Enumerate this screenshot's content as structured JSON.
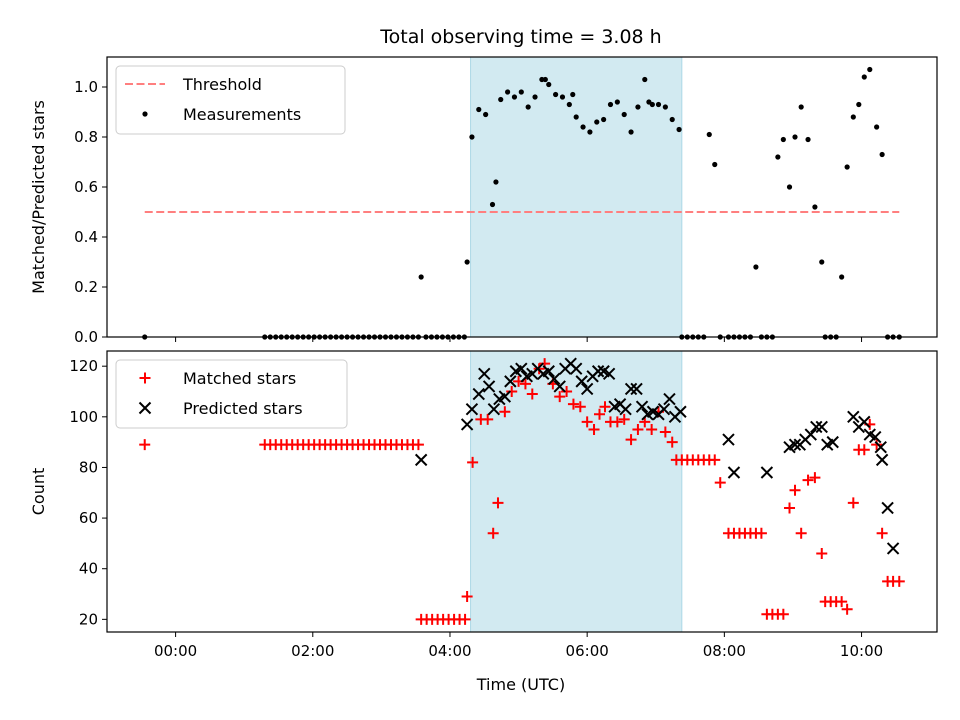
{
  "chart_data": {
    "title": "Total observing time = 3.08 h",
    "xlabel": "Time (UTC)",
    "x_unit": "hours UTC (negative = previous day)",
    "x_range": [
      -1.0,
      11.1
    ],
    "x_ticks": [
      0,
      2,
      4,
      6,
      8,
      10
    ],
    "x_tick_labels": [
      "00:00",
      "02:00",
      "04:00",
      "06:00",
      "08:00",
      "10:00"
    ],
    "shaded_interval": [
      4.3,
      7.38
    ],
    "shade_color": "#add8e6",
    "panels": [
      {
        "type": "scatter",
        "ylabel": "Matched/Predicted stars",
        "ylim": [
          0,
          1.12
        ],
        "y_ticks": [
          0,
          0.2,
          0.4,
          0.6,
          0.8,
          1.0
        ],
        "y_tick_labels": [
          "0.0",
          "0.2",
          "0.4",
          "0.6",
          "0.8",
          "1.0"
        ],
        "legend_position": "top-left",
        "threshold": {
          "name": "Threshold",
          "value": 0.5,
          "x_range": [
            -0.45,
            10.55
          ],
          "color": "#ff7f7f",
          "style": "dashed"
        },
        "series": [
          {
            "name": "Measurements",
            "marker": "dot",
            "color": "#000000",
            "x": [
              -0.45,
              1.3,
              1.38,
              1.46,
              1.54,
              1.62,
              1.7,
              1.78,
              1.86,
              1.94,
              2.02,
              2.1,
              2.18,
              2.26,
              2.34,
              2.42,
              2.5,
              2.58,
              2.66,
              2.74,
              2.82,
              2.9,
              2.98,
              3.06,
              3.14,
              3.22,
              3.3,
              3.38,
              3.46,
              3.54,
              3.58,
              3.65,
              3.73,
              3.81,
              3.89,
              3.97,
              4.05,
              4.13,
              4.21,
              4.25,
              4.32,
              4.42,
              4.52,
              4.62,
              4.67,
              4.74,
              4.84,
              4.94,
              5.04,
              5.14,
              5.24,
              5.34,
              5.39,
              5.44,
              5.54,
              5.64,
              5.74,
              5.79,
              5.84,
              5.94,
              6.04,
              6.14,
              6.24,
              6.34,
              6.44,
              6.54,
              6.64,
              6.74,
              6.84,
              6.9,
              6.95,
              7.04,
              7.14,
              7.24,
              7.34,
              7.38,
              7.46,
              7.54,
              7.62,
              7.7,
              7.78,
              7.86,
              7.94,
              8.06,
              8.14,
              8.22,
              8.3,
              8.38,
              8.46,
              8.54,
              8.62,
              8.7,
              8.78,
              8.86,
              8.95,
              9.03,
              9.12,
              9.22,
              9.32,
              9.42,
              9.47,
              9.55,
              9.63,
              9.71,
              9.79,
              9.88,
              9.96,
              10.04,
              10.12,
              10.22,
              10.3,
              10.38,
              10.46,
              10.55
            ],
            "y": [
              0.0,
              0.0,
              0.0,
              0.0,
              0.0,
              0.0,
              0.0,
              0.0,
              0.0,
              0.0,
              0.0,
              0.0,
              0.0,
              0.0,
              0.0,
              0.0,
              0.0,
              0.0,
              0.0,
              0.0,
              0.0,
              0.0,
              0.0,
              0.0,
              0.0,
              0.0,
              0.0,
              0.0,
              0.0,
              0.0,
              0.24,
              0.0,
              0.0,
              0.0,
              0.0,
              0.0,
              0.0,
              0.0,
              0.0,
              0.3,
              0.8,
              0.91,
              0.89,
              0.53,
              0.62,
              0.95,
              0.98,
              0.96,
              0.98,
              0.92,
              0.96,
              1.03,
              1.03,
              1.01,
              0.97,
              0.96,
              0.93,
              0.97,
              0.88,
              0.84,
              0.82,
              0.86,
              0.87,
              0.93,
              0.94,
              0.89,
              0.82,
              0.92,
              1.03,
              0.94,
              0.93,
              0.93,
              0.92,
              0.87,
              0.83,
              0.0,
              0.0,
              0.0,
              0.0,
              0.0,
              0.81,
              0.69,
              0.0,
              0.0,
              0.0,
              0.0,
              0.0,
              0.0,
              0.28,
              0.0,
              0.0,
              0.0,
              0.72,
              0.79,
              0.6,
              0.8,
              0.92,
              0.79,
              0.52,
              0.3,
              0.0,
              0.0,
              0.0,
              0.24,
              0.68,
              0.88,
              0.93,
              1.04,
              1.07,
              0.84,
              0.73,
              0.0,
              0.0,
              0.0
            ]
          }
        ]
      },
      {
        "type": "scatter",
        "ylabel": "Count",
        "ylim": [
          15,
          126
        ],
        "y_ticks": [
          20,
          40,
          60,
          80,
          100,
          120
        ],
        "y_tick_labels": [
          "20",
          "40",
          "60",
          "80",
          "100",
          "120"
        ],
        "legend_position": "top-left",
        "series": [
          {
            "name": "Matched stars",
            "marker": "plus",
            "color": "#ff0000",
            "x": [
              -0.45,
              1.3,
              1.38,
              1.46,
              1.54,
              1.62,
              1.7,
              1.78,
              1.86,
              1.94,
              2.02,
              2.1,
              2.18,
              2.26,
              2.34,
              2.42,
              2.5,
              2.58,
              2.66,
              2.74,
              2.82,
              2.9,
              2.98,
              3.06,
              3.14,
              3.22,
              3.3,
              3.38,
              3.46,
              3.54,
              3.58,
              3.66,
              3.74,
              3.82,
              3.9,
              3.98,
              4.06,
              4.14,
              4.22,
              4.25,
              4.33,
              4.45,
              4.55,
              4.63,
              4.7,
              4.8,
              4.9,
              5.0,
              5.1,
              5.2,
              5.3,
              5.38,
              5.5,
              5.6,
              5.7,
              5.8,
              5.9,
              6.0,
              6.1,
              6.18,
              6.26,
              6.34,
              6.44,
              6.54,
              6.64,
              6.74,
              6.84,
              6.94,
              7.04,
              7.14,
              7.24,
              7.3,
              7.38,
              7.46,
              7.54,
              7.62,
              7.7,
              7.78,
              7.86,
              7.94,
              8.06,
              8.14,
              8.22,
              8.3,
              8.38,
              8.46,
              8.54,
              8.62,
              8.7,
              8.78,
              8.86,
              8.95,
              9.03,
              9.12,
              9.22,
              9.32,
              9.42,
              9.47,
              9.55,
              9.63,
              9.71,
              9.79,
              9.88,
              9.96,
              10.04,
              10.12,
              10.22,
              10.3,
              10.38,
              10.46,
              10.55
            ],
            "y": [
              89,
              89,
              89,
              89,
              89,
              89,
              89,
              89,
              89,
              89,
              89,
              89,
              89,
              89,
              89,
              89,
              89,
              89,
              89,
              89,
              89,
              89,
              89,
              89,
              89,
              89,
              89,
              89,
              89,
              89,
              20,
              20,
              20,
              20,
              20,
              20,
              20,
              20,
              20,
              29,
              82,
              99,
              99,
              54,
              66,
              102,
              110,
              114,
              113,
              109,
              119,
              121,
              113,
              108,
              110,
              105,
              104,
              98,
              95,
              101,
              104,
              98,
              98,
              99,
              91,
              95,
              98,
              95,
              102,
              94,
              90,
              83,
              83,
              83,
              83,
              83,
              83,
              83,
              83,
              74,
              54,
              54,
              54,
              54,
              54,
              54,
              54,
              22,
              22,
              22,
              22,
              64,
              71,
              54,
              75,
              76,
              46,
              27,
              27,
              27,
              27,
              24,
              66,
              87,
              87,
              97,
              89,
              54,
              35,
              35,
              35
            ]
          },
          {
            "name": "Predicted stars",
            "marker": "cross",
            "color": "#000000",
            "x": [
              3.58,
              4.25,
              4.32,
              4.42,
              4.5,
              4.57,
              4.64,
              4.72,
              4.8,
              4.88,
              4.96,
              5.04,
              5.12,
              5.2,
              5.28,
              5.36,
              5.44,
              5.52,
              5.6,
              5.68,
              5.76,
              5.84,
              5.92,
              6.0,
              6.08,
              6.16,
              6.24,
              6.32,
              6.4,
              6.48,
              6.56,
              6.64,
              6.72,
              6.8,
              6.88,
              6.96,
              7.04,
              7.12,
              7.2,
              7.28,
              7.36,
              8.06,
              8.14,
              8.62,
              8.95,
              9.03,
              9.1,
              9.18,
              9.26,
              9.34,
              9.42,
              9.5,
              9.58,
              9.88,
              9.96,
              10.04,
              10.12,
              10.2,
              10.28,
              10.3,
              10.38,
              10.46
            ],
            "y": [
              83,
              97,
              103,
              109,
              117,
              112,
              103,
              107,
              108,
              114,
              118,
              119,
              116,
              117,
              119,
              117,
              118,
              115,
              112,
              119,
              121,
              119,
              114,
              111,
              116,
              118,
              118,
              117,
              104,
              105,
              103,
              111,
              111,
              104,
              101,
              102,
              101,
              103,
              107,
              100,
              102,
              91,
              78,
              78,
              88,
              89,
              89,
              91,
              93,
              96,
              96,
              89,
              90,
              100,
              96,
              98,
              93,
              92,
              88,
              83,
              64,
              48
            ]
          }
        ]
      }
    ]
  }
}
